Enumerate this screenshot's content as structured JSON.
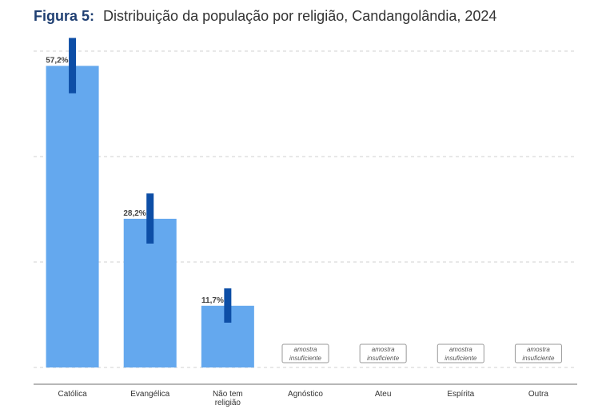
{
  "header": {
    "figure_label": "Figura 5:",
    "title_text": "Distribuição da população por religião, Candangolândia, 2024"
  },
  "colors": {
    "bar": "#64a8ee",
    "error_bar": "#0d4ea6",
    "title_accent": "#1f3f72"
  },
  "chart_data": {
    "type": "bar",
    "title": "Distribuição da população por religião, Candangolândia, 2024",
    "categories": [
      [
        "Católica"
      ],
      [
        "Evangélica"
      ],
      [
        "Não tem",
        "religião"
      ],
      [
        "Agnóstico"
      ],
      [
        "Ateu"
      ],
      [
        "Espírita"
      ],
      [
        "Outra"
      ]
    ],
    "values": [
      57.2,
      28.2,
      11.7,
      null,
      null,
      null,
      null
    ],
    "value_labels": [
      "57,2%",
      "28,2%",
      "11,7%",
      null,
      null,
      null,
      null
    ],
    "error_bars": [
      [
        52.0,
        62.5
      ],
      [
        23.5,
        33.0
      ],
      [
        8.5,
        15.0
      ],
      null,
      null,
      null,
      null
    ],
    "insufficient_sample_note": [
      "amostra",
      "insuficiente"
    ],
    "ylim": [
      0,
      60
    ],
    "gridlines": [
      0,
      20,
      40,
      60
    ],
    "grid": true,
    "y_axis_labels_shown": false
  }
}
